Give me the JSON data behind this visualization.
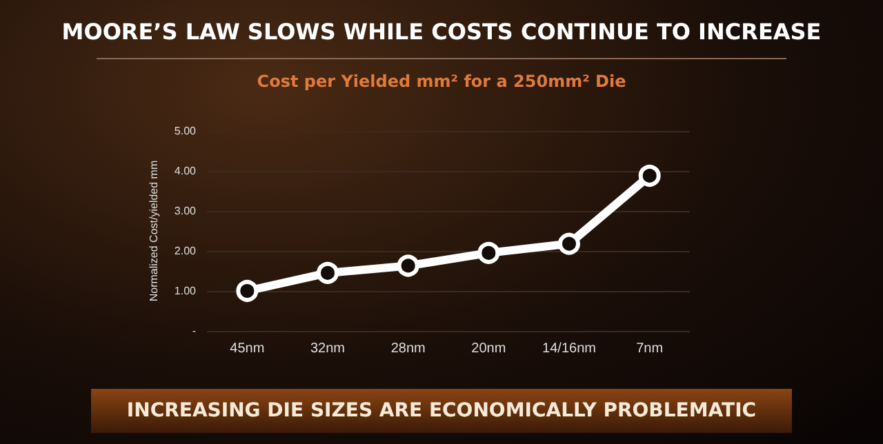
{
  "chart_data": {
    "type": "line",
    "title": "MOORE’S LAW SLOWS WHILE COSTS CONTINUE TO INCREASE",
    "subtitle": "Cost per Yielded mm² for a 250mm² Die",
    "ylabel": "Normalized Cost/yielded mm",
    "categories": [
      "45nm",
      "32nm",
      "28nm",
      "20nm",
      "14/16nm",
      "7nm"
    ],
    "series": [
      {
        "color": "#ffffff",
        "values": [
          1.0,
          1.45,
          1.63,
          1.95,
          2.18,
          3.88
        ]
      }
    ],
    "ylim": [
      0,
      5
    ],
    "yticks": [
      {
        "value": 0,
        "label": "-"
      },
      {
        "value": 1,
        "label": "1.00"
      },
      {
        "value": 2,
        "label": "2.00"
      },
      {
        "value": 3,
        "label": "3.00"
      },
      {
        "value": 4,
        "label": "4.00"
      },
      {
        "value": 5,
        "label": "5.00"
      }
    ],
    "grid": "y",
    "marker": "circle",
    "line_style": "solid",
    "annotations": [
      "INCREASING DIE SIZES ARE ECONOMICALLY PROBLEMATIC"
    ]
  }
}
